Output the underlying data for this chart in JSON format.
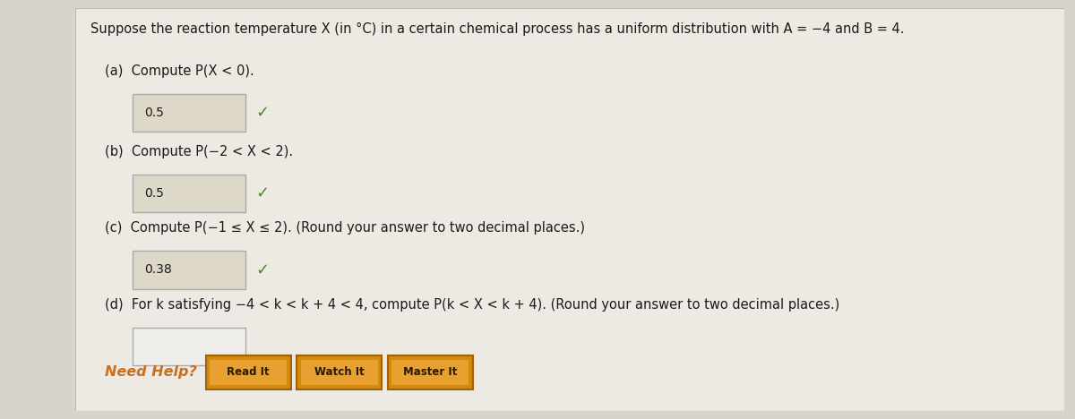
{
  "bg_color": "#d8d4cc",
  "panel_color": "#edeae4",
  "title_text": "Suppose the reaction temperature X (in °C) in a certain chemical process has a uniform distribution with A = −4 and B = 4.",
  "parts": [
    {
      "label": "(a)",
      "question": "Compute P(X < 0).",
      "answer": "0.5",
      "has_check": true
    },
    {
      "label": "(b)",
      "question": "Compute P(−2 < X < 2).",
      "answer": "0.5",
      "has_check": true
    },
    {
      "label": "(c)",
      "question": "Compute P(−1 ≤ X ≤ 2). (Round your answer to two decimal places.)",
      "answer": "0.38",
      "has_check": true
    },
    {
      "label": "(d)",
      "question": "For k satisfying −4 < k < k + 4 < 4, compute P(k < X < k + 4). (Round your answer to two decimal places.)",
      "answer": "",
      "has_check": false
    }
  ],
  "need_help_color": "#c87020",
  "button_bg_color": "#d4890a",
  "button_text_color": "#2a1a00",
  "button_border_color": "#a06010",
  "button_inner_color": "#e8a030",
  "buttons": [
    "Read It",
    "Watch It",
    "Master It"
  ],
  "check_color": "#4a8a2a",
  "input_box_color": "#ddd8c8",
  "input_border_color": "#aaaaaa",
  "input_empty_color": "#f0eeea",
  "font_color": "#1a1a1a",
  "panel_border_color": "#bbbbbb",
  "font_size_title": 10.5,
  "font_size_body": 10.5,
  "font_size_answer": 10.0,
  "font_size_check": 13,
  "font_size_button": 8.5,
  "font_size_needhelp": 11.5
}
